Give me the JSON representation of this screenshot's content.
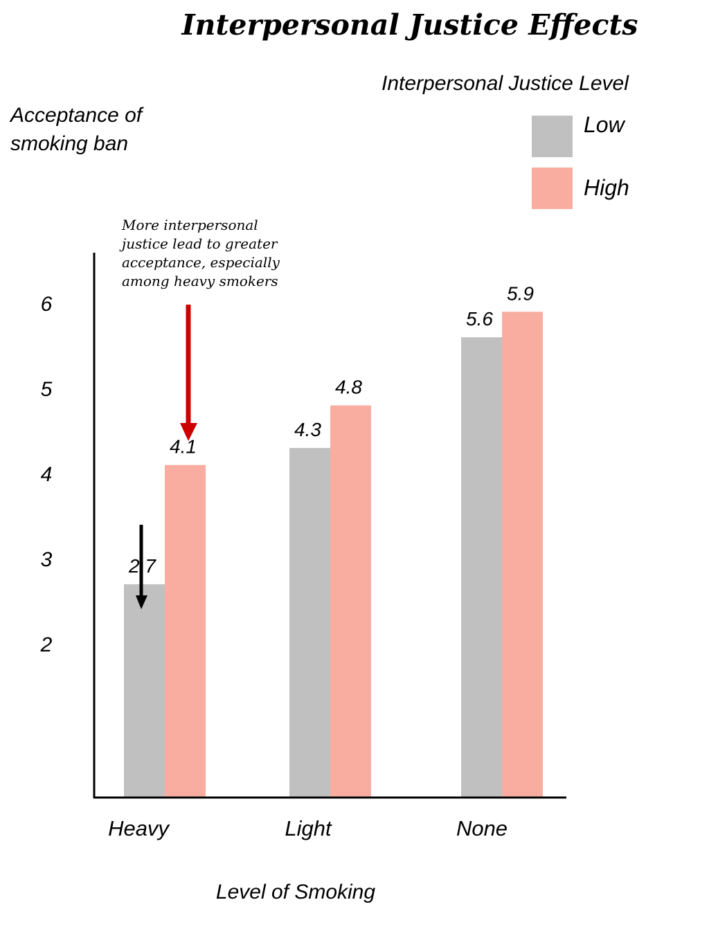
{
  "chart_data": {
    "type": "bar",
    "title": "Interpersonal Justice Effects",
    "ylabel_lines": [
      "Acceptance of",
      "smoking ban"
    ],
    "xlabel": "Level of Smoking",
    "categories": [
      "Heavy",
      "Light",
      "None"
    ],
    "yticks": [
      "2",
      "3",
      "4",
      "5",
      "6"
    ],
    "legend_title": "Interpersonal Justice Level",
    "legend_position": "top-right",
    "series": [
      {
        "name": "Low",
        "color": "#c0c0c0",
        "values": [
          2.7,
          4.3,
          5.6
        ],
        "labels": [
          "2.7",
          "4.3",
          "5.6"
        ]
      },
      {
        "name": "High",
        "color": "#f9ada0",
        "values": [
          4.1,
          4.8,
          5.9
        ],
        "labels": [
          "4.1",
          "4.8",
          "5.9"
        ]
      }
    ],
    "annotation_lines": [
      "More interpersonal",
      "justice lead to greater",
      "acceptance, especially",
      "among heavy smokers"
    ],
    "colors": {
      "red_arrow": "#cc0000",
      "black_arrow": "#000000"
    },
    "grid": false
  }
}
